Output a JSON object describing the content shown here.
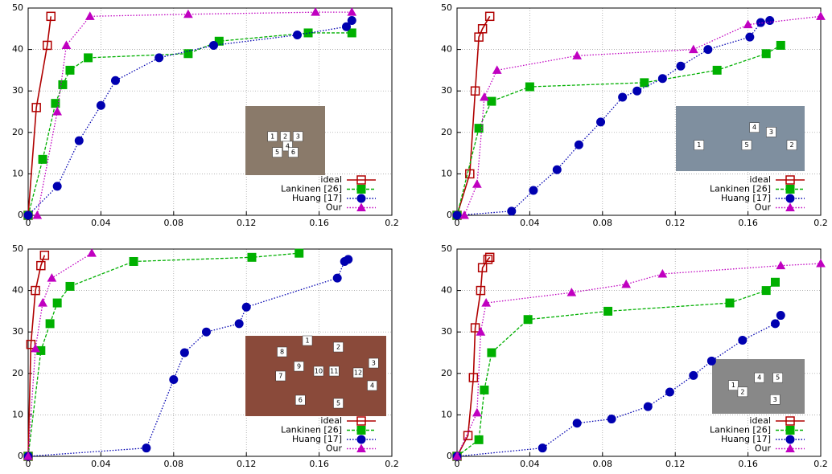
{
  "chart_data": [
    {
      "type": "line",
      "xlim": [
        0,
        0.2
      ],
      "ylim": [
        0,
        50
      ],
      "xticks": [
        0,
        0.04,
        0.08,
        0.12,
        0.16,
        0.2
      ],
      "yticks": [
        0,
        10,
        20,
        30,
        40,
        50
      ],
      "grid": true,
      "legend": "lower right",
      "inset_labels": [
        "1",
        "2",
        "3",
        "4",
        "5",
        "6"
      ],
      "series": [
        {
          "name": "ideal",
          "color": "#b00000",
          "marker": "square-open",
          "dash": "solid",
          "x": [
            0,
            0.0045,
            0.0105,
            0.0125
          ],
          "values": [
            0,
            26,
            41,
            48
          ]
        },
        {
          "name": "Lankinen [26]",
          "color": "#00b000",
          "marker": "square",
          "dash": "dashed",
          "x": [
            0,
            0.008,
            0.015,
            0.019,
            0.023,
            0.033,
            0.088,
            0.105,
            0.154,
            0.178
          ],
          "values": [
            0,
            13.5,
            27,
            31.5,
            35,
            38,
            39,
            42,
            44,
            44
          ]
        },
        {
          "name": "Huang [17]",
          "color": "#0000b0",
          "marker": "circle",
          "dash": "dotted",
          "x": [
            0,
            0.016,
            0.028,
            0.04,
            0.048,
            0.072,
            0.102,
            0.148,
            0.175,
            0.178
          ],
          "values": [
            0,
            7,
            18,
            26.5,
            32.5,
            38,
            41,
            43.5,
            45.5,
            47
          ]
        },
        {
          "name": "Our",
          "color": "#c000c0",
          "marker": "triangle",
          "dash": "dotted",
          "x": [
            0.005,
            0.016,
            0.021,
            0.034,
            0.088,
            0.158,
            0.178
          ],
          "values": [
            0,
            25,
            41,
            48,
            48.5,
            49,
            49
          ]
        }
      ]
    },
    {
      "type": "line",
      "xlim": [
        0,
        0.2
      ],
      "ylim": [
        0,
        50
      ],
      "xticks": [
        0,
        0.04,
        0.08,
        0.12,
        0.16,
        0.2
      ],
      "yticks": [
        0,
        10,
        20,
        30,
        40,
        50
      ],
      "grid": true,
      "legend": "lower right",
      "inset_labels": [
        "1",
        "2",
        "3",
        "4",
        "5"
      ],
      "series": [
        {
          "name": "ideal",
          "color": "#b00000",
          "marker": "square-open",
          "dash": "solid",
          "x": [
            0,
            0.007,
            0.01,
            0.012,
            0.014,
            0.018
          ],
          "values": [
            0,
            10,
            30,
            43,
            45,
            48
          ]
        },
        {
          "name": "Lankinen [26]",
          "color": "#00b000",
          "marker": "square",
          "dash": "dashed",
          "x": [
            0,
            0.012,
            0.019,
            0.04,
            0.103,
            0.143,
            0.17,
            0.178
          ],
          "values": [
            0,
            21,
            27.5,
            31,
            32,
            35,
            39,
            41
          ]
        },
        {
          "name": "Huang [17]",
          "color": "#0000b0",
          "marker": "circle",
          "dash": "dotted",
          "x": [
            0,
            0.03,
            0.042,
            0.055,
            0.067,
            0.079,
            0.091,
            0.099,
            0.113,
            0.123,
            0.138,
            0.161,
            0.167,
            0.172
          ],
          "values": [
            0,
            1,
            6,
            11,
            17,
            22.5,
            28.5,
            30,
            33,
            36,
            40,
            43,
            46.5,
            47
          ]
        },
        {
          "name": "Our",
          "color": "#c000c0",
          "marker": "triangle",
          "dash": "dotted",
          "x": [
            0.004,
            0.011,
            0.015,
            0.022,
            0.066,
            0.13,
            0.16,
            0.2
          ],
          "values": [
            0,
            7.5,
            28.5,
            35,
            38.5,
            40,
            46,
            48
          ]
        }
      ]
    },
    {
      "type": "line",
      "xlim": [
        0,
        0.2
      ],
      "ylim": [
        0,
        50
      ],
      "xticks": [
        0,
        0.04,
        0.08,
        0.12,
        0.16,
        0.2
      ],
      "yticks": [
        0,
        10,
        20,
        30,
        40,
        50
      ],
      "grid": true,
      "legend": "lower right",
      "inset_labels": [
        "1",
        "2",
        "3",
        "4",
        "5",
        "6",
        "7",
        "8",
        "9",
        "10",
        "11",
        "12"
      ],
      "series": [
        {
          "name": "ideal",
          "color": "#b00000",
          "marker": "square-open",
          "dash": "solid",
          "x": [
            0,
            0.0015,
            0.004,
            0.007,
            0.009
          ],
          "values": [
            0,
            27,
            40,
            46,
            48.5
          ]
        },
        {
          "name": "Lankinen [26]",
          "color": "#00b000",
          "marker": "square",
          "dash": "dashed",
          "x": [
            0,
            0.007,
            0.012,
            0.016,
            0.023,
            0.058,
            0.123,
            0.149
          ],
          "values": [
            0,
            25.5,
            32,
            37,
            41,
            47,
            48,
            49
          ]
        },
        {
          "name": "Huang [17]",
          "color": "#0000b0",
          "marker": "circle",
          "dash": "dotted",
          "x": [
            0,
            0.065,
            0.08,
            0.086,
            0.098,
            0.116,
            0.12,
            0.17,
            0.174,
            0.176
          ],
          "values": [
            0,
            2,
            18.5,
            25,
            30,
            32,
            36,
            43,
            47,
            47.5
          ]
        },
        {
          "name": "Our",
          "color": "#c000c0",
          "marker": "triangle",
          "dash": "dotted",
          "x": [
            0,
            0.004,
            0.008,
            0.013,
            0.035
          ],
          "values": [
            0,
            26,
            37,
            43,
            49
          ]
        }
      ]
    },
    {
      "type": "line",
      "xlim": [
        0,
        0.2
      ],
      "ylim": [
        0,
        50
      ],
      "xticks": [
        0,
        0.04,
        0.08,
        0.12,
        0.16,
        0.2
      ],
      "yticks": [
        0,
        10,
        20,
        30,
        40,
        50
      ],
      "grid": true,
      "legend": "lower right",
      "inset_labels": [
        "1",
        "2",
        "3",
        "4",
        "5"
      ],
      "series": [
        {
          "name": "ideal",
          "color": "#b00000",
          "marker": "square-open",
          "dash": "solid",
          "x": [
            0,
            0.006,
            0.009,
            0.01,
            0.013,
            0.014,
            0.017,
            0.018
          ],
          "values": [
            0,
            5,
            19,
            31,
            40,
            45.5,
            47.5,
            48
          ]
        },
        {
          "name": "Lankinen [26]",
          "color": "#00b000",
          "marker": "square",
          "dash": "dashed",
          "x": [
            0,
            0.012,
            0.015,
            0.019,
            0.039,
            0.083,
            0.15,
            0.17,
            0.175
          ],
          "values": [
            0,
            4,
            16,
            25,
            33,
            35,
            37,
            40,
            42
          ]
        },
        {
          "name": "Huang [17]",
          "color": "#0000b0",
          "marker": "circle",
          "dash": "dotted",
          "x": [
            0,
            0.047,
            0.066,
            0.085,
            0.105,
            0.117,
            0.13,
            0.14,
            0.157,
            0.175,
            0.178
          ],
          "values": [
            0,
            2,
            8,
            9,
            12,
            15.5,
            19.5,
            23,
            28,
            32,
            34
          ]
        },
        {
          "name": "Our",
          "color": "#c000c0",
          "marker": "triangle",
          "dash": "dotted",
          "x": [
            0,
            0.011,
            0.013,
            0.016,
            0.063,
            0.093,
            0.113,
            0.178,
            0.2
          ],
          "values": [
            0,
            10.5,
            30,
            37,
            39.5,
            41.5,
            44,
            46,
            46.5
          ]
        }
      ]
    }
  ]
}
